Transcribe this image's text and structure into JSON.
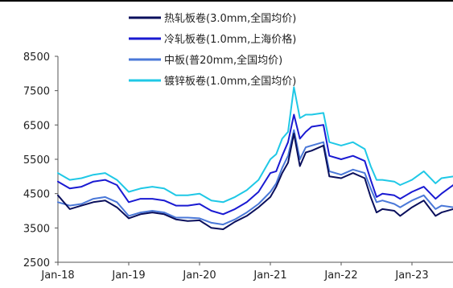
{
  "chart_data": {
    "type": "line",
    "title": "",
    "xlabel": "",
    "ylabel": "",
    "ylim": [
      2500,
      8500
    ],
    "yticks": [
      2500,
      3500,
      4500,
      5500,
      6500,
      7500,
      8500
    ],
    "x_tick_labels": [
      "Jan-18",
      "Jan-19",
      "Jan-20",
      "Jan-21",
      "Jan-22",
      "Jan-23"
    ],
    "x_tick_dates": [
      "2018-01",
      "2019-01",
      "2020-01",
      "2021-01",
      "2022-01",
      "2023-01"
    ],
    "xlim": [
      "2018-01",
      "2023-08"
    ],
    "grid": false,
    "legend_position": "top-center",
    "series": [
      {
        "name": "热轧板卷(3.0mm,全国均价)",
        "color": "#0a0f5c",
        "values": [
          [
            "2018-01",
            4450
          ],
          [
            "2018-03",
            4050
          ],
          [
            "2018-05",
            4150
          ],
          [
            "2018-07",
            4250
          ],
          [
            "2018-09",
            4300
          ],
          [
            "2018-11",
            4100
          ],
          [
            "2019-01",
            3780
          ],
          [
            "2019-03",
            3900
          ],
          [
            "2019-05",
            3950
          ],
          [
            "2019-07",
            3900
          ],
          [
            "2019-09",
            3750
          ],
          [
            "2019-11",
            3700
          ],
          [
            "2020-01",
            3720
          ],
          [
            "2020-03",
            3500
          ],
          [
            "2020-05",
            3460
          ],
          [
            "2020-07",
            3680
          ],
          [
            "2020-09",
            3850
          ],
          [
            "2020-11",
            4100
          ],
          [
            "2021-01",
            4400
          ],
          [
            "2021-02",
            4700
          ],
          [
            "2021-03",
            5100
          ],
          [
            "2021-04",
            5400
          ],
          [
            "2021-05",
            6250
          ],
          [
            "2021-06",
            5300
          ],
          [
            "2021-07",
            5700
          ],
          [
            "2021-08",
            5750
          ],
          [
            "2021-10",
            5900
          ],
          [
            "2021-11",
            5000
          ],
          [
            "2022-01",
            4950
          ],
          [
            "2022-03",
            5100
          ],
          [
            "2022-05",
            4950
          ],
          [
            "2022-06",
            4400
          ],
          [
            "2022-07",
            3950
          ],
          [
            "2022-08",
            4050
          ],
          [
            "2022-10",
            4000
          ],
          [
            "2022-11",
            3850
          ],
          [
            "2023-01",
            4100
          ],
          [
            "2023-03",
            4300
          ],
          [
            "2023-05",
            3850
          ],
          [
            "2023-06",
            3950
          ],
          [
            "2023-08",
            4050
          ]
        ]
      },
      {
        "name": "冷轧板卷(1.0mm,上海价格)",
        "color": "#1a1ad2",
        "values": [
          [
            "2018-01",
            4850
          ],
          [
            "2018-03",
            4650
          ],
          [
            "2018-05",
            4700
          ],
          [
            "2018-07",
            4850
          ],
          [
            "2018-09",
            4900
          ],
          [
            "2018-11",
            4750
          ],
          [
            "2019-01",
            4250
          ],
          [
            "2019-03",
            4350
          ],
          [
            "2019-05",
            4350
          ],
          [
            "2019-07",
            4300
          ],
          [
            "2019-09",
            4150
          ],
          [
            "2019-11",
            4150
          ],
          [
            "2020-01",
            4200
          ],
          [
            "2020-03",
            4000
          ],
          [
            "2020-05",
            3900
          ],
          [
            "2020-07",
            4050
          ],
          [
            "2020-09",
            4250
          ],
          [
            "2020-11",
            4550
          ],
          [
            "2021-01",
            5100
          ],
          [
            "2021-02",
            5150
          ],
          [
            "2021-03",
            5600
          ],
          [
            "2021-04",
            6000
          ],
          [
            "2021-05",
            6800
          ],
          [
            "2021-06",
            6100
          ],
          [
            "2021-07",
            6300
          ],
          [
            "2021-08",
            6450
          ],
          [
            "2021-10",
            6500
          ],
          [
            "2021-11",
            5600
          ],
          [
            "2022-01",
            5500
          ],
          [
            "2022-03",
            5600
          ],
          [
            "2022-05",
            5450
          ],
          [
            "2022-06",
            4900
          ],
          [
            "2022-07",
            4400
          ],
          [
            "2022-08",
            4500
          ],
          [
            "2022-10",
            4450
          ],
          [
            "2022-11",
            4350
          ],
          [
            "2023-01",
            4550
          ],
          [
            "2023-03",
            4700
          ],
          [
            "2023-05",
            4350
          ],
          [
            "2023-06",
            4500
          ],
          [
            "2023-08",
            4750
          ]
        ]
      },
      {
        "name": "中板(普20mm,全国均价)",
        "color": "#4a78d8",
        "values": [
          [
            "2018-01",
            4250
          ],
          [
            "2018-03",
            4150
          ],
          [
            "2018-05",
            4200
          ],
          [
            "2018-07",
            4350
          ],
          [
            "2018-09",
            4400
          ],
          [
            "2018-11",
            4250
          ],
          [
            "2019-01",
            3850
          ],
          [
            "2019-03",
            3950
          ],
          [
            "2019-05",
            4000
          ],
          [
            "2019-07",
            3950
          ],
          [
            "2019-09",
            3800
          ],
          [
            "2019-11",
            3800
          ],
          [
            "2020-01",
            3780
          ],
          [
            "2020-03",
            3650
          ],
          [
            "2020-05",
            3600
          ],
          [
            "2020-07",
            3750
          ],
          [
            "2020-09",
            3950
          ],
          [
            "2020-11",
            4200
          ],
          [
            "2021-01",
            4550
          ],
          [
            "2021-02",
            4800
          ],
          [
            "2021-03",
            5250
          ],
          [
            "2021-04",
            5600
          ],
          [
            "2021-05",
            6350
          ],
          [
            "2021-06",
            5500
          ],
          [
            "2021-07",
            5850
          ],
          [
            "2021-08",
            5900
          ],
          [
            "2021-10",
            6000
          ],
          [
            "2021-11",
            5150
          ],
          [
            "2022-01",
            5050
          ],
          [
            "2022-03",
            5200
          ],
          [
            "2022-05",
            5100
          ],
          [
            "2022-06",
            4650
          ],
          [
            "2022-07",
            4250
          ],
          [
            "2022-08",
            4300
          ],
          [
            "2022-10",
            4200
          ],
          [
            "2022-11",
            4100
          ],
          [
            "2023-01",
            4300
          ],
          [
            "2023-03",
            4450
          ],
          [
            "2023-05",
            4050
          ],
          [
            "2023-06",
            4150
          ],
          [
            "2023-08",
            4100
          ]
        ]
      },
      {
        "name": "镀锌板卷(1.0mm,全国均价)",
        "color": "#1fc8e6",
        "values": [
          [
            "2018-01",
            5100
          ],
          [
            "2018-03",
            4900
          ],
          [
            "2018-05",
            4950
          ],
          [
            "2018-07",
            5050
          ],
          [
            "2018-09",
            5100
          ],
          [
            "2018-11",
            4900
          ],
          [
            "2019-01",
            4550
          ],
          [
            "2019-03",
            4650
          ],
          [
            "2019-05",
            4700
          ],
          [
            "2019-07",
            4650
          ],
          [
            "2019-09",
            4450
          ],
          [
            "2019-11",
            4450
          ],
          [
            "2020-01",
            4500
          ],
          [
            "2020-03",
            4300
          ],
          [
            "2020-05",
            4250
          ],
          [
            "2020-07",
            4400
          ],
          [
            "2020-09",
            4600
          ],
          [
            "2020-11",
            4900
          ],
          [
            "2021-01",
            5500
          ],
          [
            "2021-02",
            5650
          ],
          [
            "2021-03",
            6100
          ],
          [
            "2021-04",
            6300
          ],
          [
            "2021-05",
            7600
          ],
          [
            "2021-06",
            6700
          ],
          [
            "2021-07",
            6800
          ],
          [
            "2021-08",
            6800
          ],
          [
            "2021-10",
            6850
          ],
          [
            "2021-11",
            6000
          ],
          [
            "2022-01",
            5900
          ],
          [
            "2022-03",
            6000
          ],
          [
            "2022-05",
            5800
          ],
          [
            "2022-06",
            5300
          ],
          [
            "2022-07",
            4900
          ],
          [
            "2022-08",
            4900
          ],
          [
            "2022-10",
            4850
          ],
          [
            "2022-11",
            4750
          ],
          [
            "2023-01",
            4900
          ],
          [
            "2023-03",
            5150
          ],
          [
            "2023-05",
            4800
          ],
          [
            "2023-06",
            4950
          ],
          [
            "2023-08",
            5000
          ]
        ]
      }
    ]
  }
}
